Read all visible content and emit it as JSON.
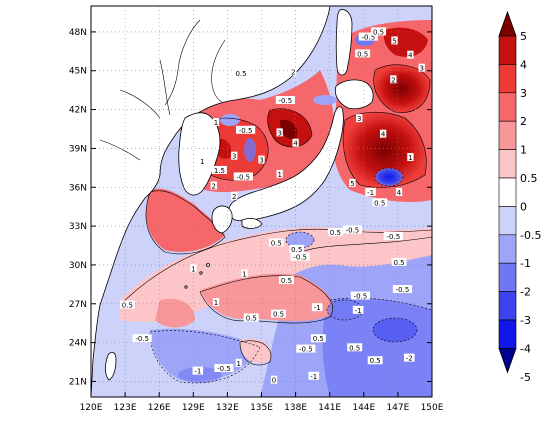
{
  "map": {
    "lon_ticks": [
      "120E",
      "123E",
      "126E",
      "129E",
      "132E",
      "135E",
      "138E",
      "141E",
      "144E",
      "147E",
      "150E"
    ],
    "lat_ticks": [
      "21N",
      "24N",
      "27N",
      "30N",
      "33N",
      "36N",
      "39N",
      "42N",
      "45N",
      "48N"
    ],
    "contour_labels": [
      {
        "text": "0.5",
        "lon": 133.2,
        "lat": 44.8
      },
      {
        "text": "-0.5",
        "lon": 133.6,
        "lat": 40.4
      },
      {
        "text": "1",
        "lon": 131.0,
        "lat": 41.0
      },
      {
        "text": "1",
        "lon": 129.8,
        "lat": 38.0
      },
      {
        "text": "1.5",
        "lon": 131.3,
        "lat": 37.3
      },
      {
        "text": "3",
        "lon": 132.6,
        "lat": 38.4
      },
      {
        "text": "-0.5",
        "lon": 133.4,
        "lat": 36.8
      },
      {
        "text": "2",
        "lon": 130.8,
        "lat": 36.1
      },
      {
        "text": "2",
        "lon": 132.6,
        "lat": 35.3
      },
      {
        "text": "2",
        "lon": 137.8,
        "lat": 44.9
      },
      {
        "text": "3",
        "lon": 136.6,
        "lat": 40.2
      },
      {
        "text": "4",
        "lon": 138.0,
        "lat": 39.4
      },
      {
        "text": "3",
        "lon": 135.0,
        "lat": 38.1
      },
      {
        "text": "1",
        "lon": 136.6,
        "lat": 37.0
      },
      {
        "text": "-0.5",
        "lon": 137.1,
        "lat": 42.7
      },
      {
        "text": "-0.5",
        "lon": 144.4,
        "lat": 47.6
      },
      {
        "text": "0.5",
        "lon": 145.3,
        "lat": 48.0
      },
      {
        "text": "0.5",
        "lon": 143.9,
        "lat": 46.3
      },
      {
        "text": "5",
        "lon": 146.7,
        "lat": 47.3
      },
      {
        "text": "2",
        "lon": 146.6,
        "lat": 44.3
      },
      {
        "text": "4",
        "lon": 148.1,
        "lat": 46.2
      },
      {
        "text": "3",
        "lon": 149.1,
        "lat": 45.2
      },
      {
        "text": "3",
        "lon": 143.6,
        "lat": 41.3
      },
      {
        "text": "4",
        "lon": 145.7,
        "lat": 40.1
      },
      {
        "text": "1",
        "lon": 148.1,
        "lat": 38.3
      },
      {
        "text": "5",
        "lon": 143.0,
        "lat": 36.3
      },
      {
        "text": "-1",
        "lon": 144.6,
        "lat": 35.6
      },
      {
        "text": "4",
        "lon": 147.1,
        "lat": 35.6
      },
      {
        "text": "0.5",
        "lon": 145.4,
        "lat": 34.8
      },
      {
        "text": "0.5",
        "lon": 136.3,
        "lat": 31.7
      },
      {
        "text": "0.5",
        "lon": 141.5,
        "lat": 32.5
      },
      {
        "text": "-0.5",
        "lon": 143.0,
        "lat": 32.7
      },
      {
        "text": "-0.5",
        "lon": 146.6,
        "lat": 32.2
      },
      {
        "text": "0.5",
        "lon": 138.1,
        "lat": 31.2
      },
      {
        "text": "-0.5",
        "lon": 138.4,
        "lat": 30.6
      },
      {
        "text": "0.5",
        "lon": 147.1,
        "lat": 30.2
      },
      {
        "text": "1",
        "lon": 129.0,
        "lat": 29.7
      },
      {
        "text": "1",
        "lon": 133.5,
        "lat": 29.3
      },
      {
        "text": "0.5",
        "lon": 137.2,
        "lat": 28.8
      },
      {
        "text": "-0.5",
        "lon": 147.4,
        "lat": 28.1
      },
      {
        "text": "0.5",
        "lon": 123.2,
        "lat": 26.9
      },
      {
        "text": "1",
        "lon": 131.0,
        "lat": 27.1
      },
      {
        "text": "-0.5",
        "lon": 143.7,
        "lat": 27.6
      },
      {
        "text": "-1",
        "lon": 143.5,
        "lat": 26.5
      },
      {
        "text": "-1",
        "lon": 139.9,
        "lat": 26.7
      },
      {
        "text": "0.5",
        "lon": 134.1,
        "lat": 25.9
      },
      {
        "text": "0.5",
        "lon": 136.5,
        "lat": 26.2
      },
      {
        "text": "-0.5",
        "lon": 124.5,
        "lat": 24.3
      },
      {
        "text": "0.5",
        "lon": 140.0,
        "lat": 24.3
      },
      {
        "text": "-0.5",
        "lon": 138.9,
        "lat": 23.5
      },
      {
        "text": "0.5",
        "lon": 143.2,
        "lat": 23.6
      },
      {
        "text": "1",
        "lon": 133.0,
        "lat": 22.4
      },
      {
        "text": "-1",
        "lon": 129.4,
        "lat": 21.8
      },
      {
        "text": "-0.5",
        "lon": 131.7,
        "lat": 22.0
      },
      {
        "text": "-1",
        "lon": 139.6,
        "lat": 21.4
      },
      {
        "text": "0",
        "lon": 136.1,
        "lat": 21.1
      },
      {
        "text": "-2",
        "lon": 148.0,
        "lat": 22.8
      },
      {
        "text": "0.5",
        "lon": 145.0,
        "lat": 22.6
      }
    ]
  },
  "colorbar": {
    "labels": [
      "5",
      "4",
      "3",
      "2",
      "1",
      "0.5",
      "0",
      "-0.5",
      "-1",
      "-2",
      "-3",
      "-4",
      "-5"
    ],
    "colors": [
      "#7d0000",
      "#c4100f",
      "#ec3a37",
      "#f5676a",
      "#f8979a",
      "#fcc6c8",
      "#ffffff",
      "#cdd2fb",
      "#9ea5f8",
      "#6f77f4",
      "#3b44ef",
      "#0f18e8",
      "#00008f"
    ]
  },
  "colors": {
    "land": "#ffffff",
    "grid": "#888888"
  }
}
